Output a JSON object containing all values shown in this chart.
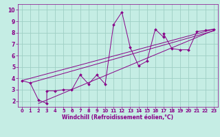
{
  "xlabel": "Windchill (Refroidissement éolien,°C)",
  "xlim": [
    -0.5,
    23.5
  ],
  "ylim": [
    1.5,
    10.5
  ],
  "xticks": [
    0,
    1,
    2,
    3,
    4,
    5,
    6,
    7,
    8,
    9,
    10,
    11,
    12,
    13,
    14,
    15,
    16,
    17,
    18,
    19,
    20,
    21,
    22,
    23
  ],
  "yticks": [
    2,
    3,
    4,
    5,
    6,
    7,
    8,
    9,
    10
  ],
  "background_color": "#c5ede4",
  "grid_color": "#9ecfc4",
  "line_color": "#880088",
  "series": [
    [
      0,
      3.8
    ],
    [
      1,
      3.6
    ],
    [
      2,
      2.1
    ],
    [
      3,
      1.8
    ],
    [
      3,
      2.9
    ],
    [
      4,
      2.9
    ],
    [
      5,
      3.0
    ],
    [
      6,
      3.0
    ],
    [
      7,
      4.3
    ],
    [
      8,
      3.5
    ],
    [
      9,
      4.3
    ],
    [
      10,
      3.5
    ],
    [
      11,
      8.7
    ],
    [
      12,
      9.8
    ],
    [
      13,
      6.7
    ],
    [
      14,
      5.1
    ],
    [
      15,
      5.5
    ],
    [
      16,
      8.3
    ],
    [
      17,
      7.6
    ],
    [
      17,
      7.9
    ],
    [
      18,
      6.6
    ],
    [
      19,
      6.5
    ],
    [
      20,
      6.5
    ],
    [
      21,
      8.1
    ],
    [
      22,
      8.2
    ],
    [
      23,
      8.3
    ]
  ],
  "line1": [
    [
      0,
      3.8
    ],
    [
      23,
      8.3
    ]
  ],
  "line2": [
    [
      2,
      1.8
    ],
    [
      23,
      8.2
    ]
  ],
  "line3": [
    [
      1,
      3.6
    ],
    [
      23,
      8.15
    ]
  ]
}
